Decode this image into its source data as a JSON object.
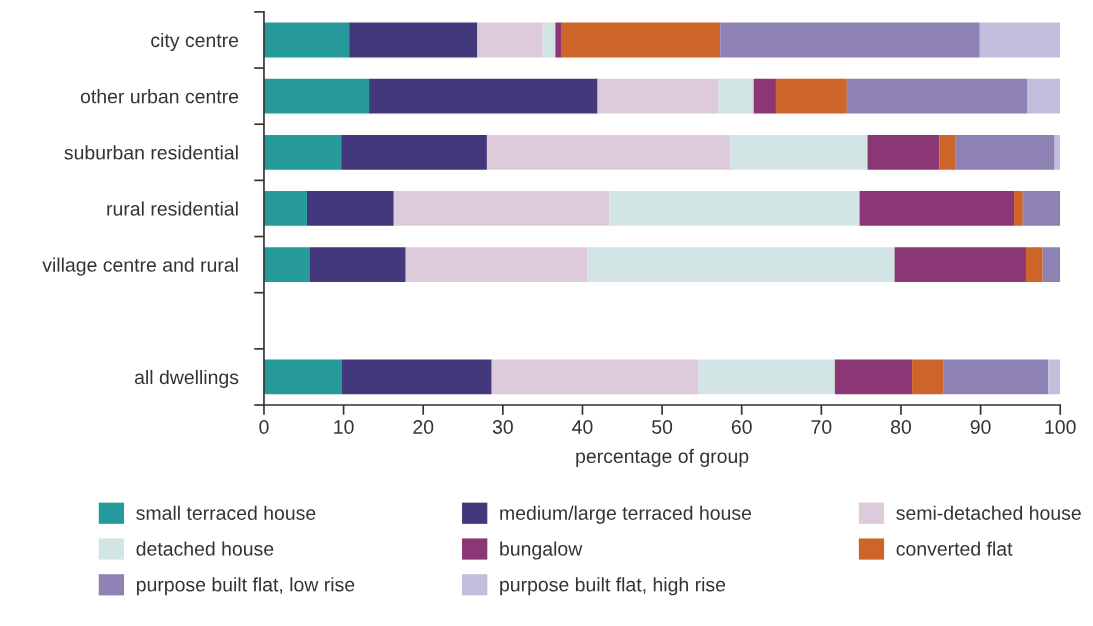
{
  "chart_data": {
    "type": "bar",
    "orientation": "horizontal",
    "stacked": true,
    "categories": [
      "city centre",
      "other urban centre",
      "suburban residential",
      "rural residential",
      "village centre and rural",
      null,
      "all dwellings"
    ],
    "series": [
      {
        "name": "small terraced house",
        "color": "#269a9a",
        "values": [
          10.7,
          13.2,
          9.7,
          5.4,
          5.7,
          null,
          9.8
        ]
      },
      {
        "name": "medium/large terraced house",
        "color": "#42387b",
        "values": [
          16.1,
          28.7,
          18.3,
          10.9,
          12.1,
          null,
          18.8
        ]
      },
      {
        "name": "semi-detached house",
        "color": "#ddcbdc",
        "values": [
          8.2,
          15.2,
          30.6,
          27.1,
          22.8,
          null,
          26.0
        ]
      },
      {
        "name": "detached house",
        "color": "#d2e5e4",
        "values": [
          1.6,
          4.4,
          17.2,
          31.4,
          38.6,
          null,
          17.1
        ]
      },
      {
        "name": "bungalow",
        "color": "#8c3775",
        "values": [
          0.8,
          2.8,
          9.0,
          19.4,
          16.5,
          null,
          9.7
        ]
      },
      {
        "name": "converted flat",
        "color": "#cd642a",
        "values": [
          19.9,
          8.9,
          2.0,
          1.1,
          2.1,
          null,
          3.9
        ]
      },
      {
        "name": "purpose built flat, low rise",
        "color": "#8d82b3",
        "values": [
          32.6,
          22.7,
          12.5,
          4.7,
          2.2,
          null,
          13.2
        ]
      },
      {
        "name": "purpose built flat, high rise",
        "color": "#c3bedb",
        "values": [
          10.1,
          4.1,
          0.7,
          0,
          0,
          null,
          1.5
        ]
      }
    ],
    "xlabel": "percentage of group",
    "xlim": [
      0,
      100
    ],
    "xticks": [
      0,
      10,
      20,
      30,
      40,
      50,
      60,
      70,
      80,
      90,
      100
    ],
    "grid": false,
    "legend": "bottom"
  }
}
